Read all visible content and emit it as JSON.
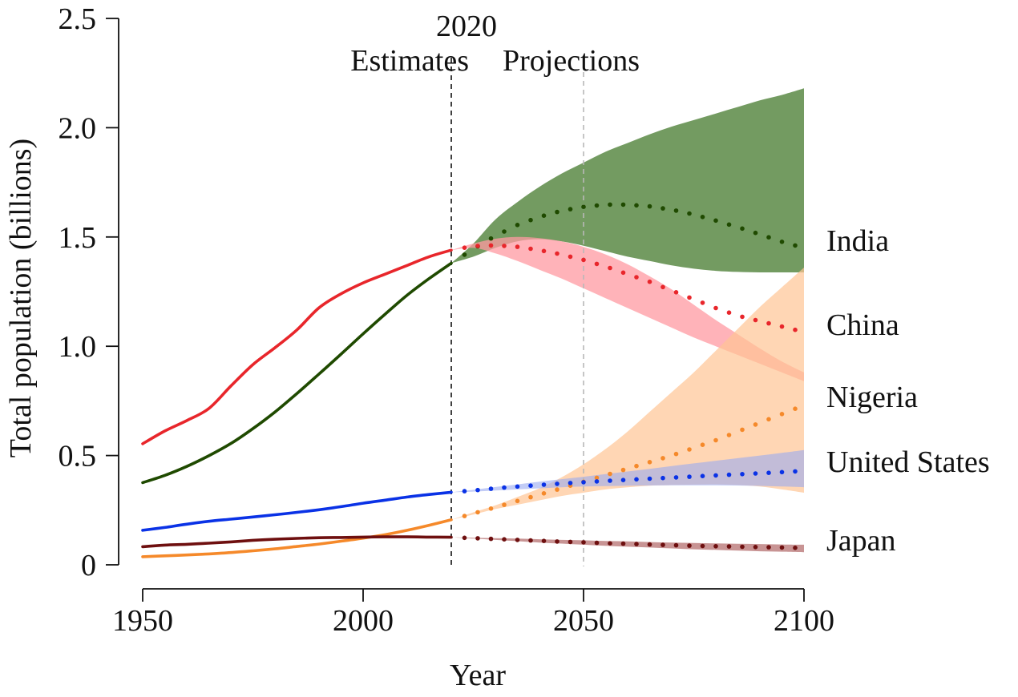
{
  "chart_data": {
    "type": "line",
    "title": "",
    "xlabel": "Year",
    "ylabel": "Total population (billions)",
    "xlim": [
      1950,
      2100
    ],
    "ylim": [
      0,
      2.5
    ],
    "x_ticks": [
      1950,
      2000,
      2050,
      2100
    ],
    "y_ticks": [
      "0",
      "0.5",
      "1.0",
      "1.5",
      "2.0",
      "2.5"
    ],
    "y_tick_values": [
      0,
      0.5,
      1.0,
      1.5,
      2.0,
      2.5
    ],
    "grid": false,
    "legend": "direct labels at right",
    "annotations": {
      "split_year": 2020,
      "split_label": "2020",
      "left_label": "Estimates",
      "right_label": "Projections",
      "reference_year": 2050
    },
    "series": [
      {
        "name": "India",
        "color": "#1f4a00",
        "band_color": "#5b8a45",
        "estimates": {
          "x": [
            1950,
            1955,
            1960,
            1965,
            1970,
            1975,
            1980,
            1985,
            1990,
            1995,
            2000,
            2005,
            2010,
            2015,
            2020
          ],
          "y": [
            0.376,
            0.409,
            0.45,
            0.499,
            0.555,
            0.623,
            0.699,
            0.784,
            0.873,
            0.964,
            1.057,
            1.147,
            1.234,
            1.31,
            1.38
          ]
        },
        "projections": {
          "x": [
            2020,
            2025,
            2030,
            2035,
            2040,
            2045,
            2050,
            2055,
            2060,
            2065,
            2070,
            2075,
            2080,
            2085,
            2090,
            2095,
            2100
          ],
          "median": [
            1.38,
            1.445,
            1.505,
            1.555,
            1.592,
            1.62,
            1.638,
            1.648,
            1.648,
            1.64,
            1.625,
            1.603,
            1.575,
            1.545,
            1.512,
            1.478,
            1.45
          ],
          "lower": [
            1.38,
            1.41,
            1.45,
            1.48,
            1.49,
            1.48,
            1.46,
            1.435,
            1.41,
            1.39,
            1.37,
            1.355,
            1.345,
            1.34,
            1.338,
            1.338,
            1.338
          ],
          "upper": [
            1.38,
            1.47,
            1.58,
            1.66,
            1.73,
            1.79,
            1.84,
            1.89,
            1.93,
            1.97,
            2.005,
            2.035,
            2.065,
            2.095,
            2.125,
            2.15,
            2.18
          ]
        }
      },
      {
        "name": "China",
        "color": "#e8262b",
        "band_color": "#ff99a2",
        "estimates": {
          "x": [
            1950,
            1955,
            1960,
            1965,
            1970,
            1975,
            1980,
            1985,
            1990,
            1995,
            2000,
            2005,
            2010,
            2015,
            2020
          ],
          "y": [
            0.554,
            0.612,
            0.66,
            0.715,
            0.818,
            0.916,
            0.993,
            1.075,
            1.176,
            1.24,
            1.29,
            1.33,
            1.37,
            1.41,
            1.44
          ]
        },
        "projections": {
          "x": [
            2020,
            2025,
            2030,
            2035,
            2040,
            2045,
            2050,
            2055,
            2060,
            2065,
            2070,
            2075,
            2080,
            2085,
            2090,
            2095,
            2100
          ],
          "median": [
            1.44,
            1.458,
            1.462,
            1.455,
            1.44,
            1.42,
            1.395,
            1.365,
            1.33,
            1.295,
            1.255,
            1.215,
            1.175,
            1.14,
            1.115,
            1.09,
            1.065
          ],
          "lower": [
            1.44,
            1.45,
            1.425,
            1.39,
            1.35,
            1.31,
            1.265,
            1.22,
            1.175,
            1.13,
            1.085,
            1.04,
            1.0,
            0.96,
            0.92,
            0.88,
            0.84
          ],
          "upper": [
            1.44,
            1.47,
            1.492,
            1.5,
            1.495,
            1.48,
            1.455,
            1.42,
            1.375,
            1.32,
            1.26,
            1.19,
            1.12,
            1.055,
            0.99,
            0.93,
            0.88
          ]
        }
      },
      {
        "name": "Nigeria",
        "color": "#f5892a",
        "band_color": "#ffc594",
        "estimates": {
          "x": [
            1950,
            1955,
            1960,
            1965,
            1970,
            1975,
            1980,
            1985,
            1990,
            1995,
            2000,
            2005,
            2010,
            2015,
            2020
          ],
          "y": [
            0.037,
            0.041,
            0.045,
            0.05,
            0.056,
            0.064,
            0.073,
            0.084,
            0.095,
            0.108,
            0.122,
            0.138,
            0.158,
            0.181,
            0.206
          ]
        },
        "projections": {
          "x": [
            2020,
            2025,
            2030,
            2035,
            2040,
            2045,
            2050,
            2055,
            2060,
            2065,
            2070,
            2075,
            2080,
            2085,
            2090,
            2095,
            2100
          ],
          "median": [
            0.206,
            0.235,
            0.263,
            0.292,
            0.321,
            0.35,
            0.38,
            0.41,
            0.44,
            0.47,
            0.5,
            0.535,
            0.57,
            0.61,
            0.65,
            0.69,
            0.73
          ],
          "lower": [
            0.206,
            0.23,
            0.255,
            0.275,
            0.295,
            0.315,
            0.33,
            0.345,
            0.355,
            0.362,
            0.365,
            0.367,
            0.368,
            0.365,
            0.358,
            0.345,
            0.33
          ],
          "upper": [
            0.206,
            0.24,
            0.272,
            0.31,
            0.35,
            0.4,
            0.46,
            0.53,
            0.61,
            0.7,
            0.79,
            0.88,
            0.98,
            1.08,
            1.18,
            1.27,
            1.36
          ]
        }
      },
      {
        "name": "United States",
        "color": "#0a32e6",
        "band_color": "#9aaaf0",
        "estimates": {
          "x": [
            1950,
            1955,
            1960,
            1965,
            1970,
            1975,
            1980,
            1985,
            1990,
            1995,
            2000,
            2005,
            2010,
            2015,
            2020
          ],
          "y": [
            0.158,
            0.171,
            0.186,
            0.199,
            0.209,
            0.219,
            0.229,
            0.24,
            0.252,
            0.266,
            0.282,
            0.296,
            0.31,
            0.322,
            0.332
          ]
        },
        "projections": {
          "x": [
            2020,
            2025,
            2030,
            2035,
            2040,
            2045,
            2050,
            2055,
            2060,
            2065,
            2070,
            2075,
            2080,
            2085,
            2090,
            2095,
            2100
          ],
          "median": [
            0.332,
            0.34,
            0.35,
            0.358,
            0.365,
            0.372,
            0.378,
            0.384,
            0.389,
            0.394,
            0.399,
            0.404,
            0.409,
            0.414,
            0.419,
            0.424,
            0.43
          ],
          "lower": [
            0.332,
            0.335,
            0.34,
            0.345,
            0.35,
            0.355,
            0.358,
            0.36,
            0.362,
            0.363,
            0.364,
            0.364,
            0.364,
            0.363,
            0.361,
            0.358,
            0.355
          ],
          "upper": [
            0.332,
            0.343,
            0.356,
            0.368,
            0.38,
            0.392,
            0.403,
            0.415,
            0.427,
            0.439,
            0.452,
            0.464,
            0.476,
            0.488,
            0.5,
            0.512,
            0.525
          ]
        }
      },
      {
        "name": "Japan",
        "color": "#6e0f0f",
        "band_color": "#b57070",
        "estimates": {
          "x": [
            1950,
            1955,
            1960,
            1965,
            1970,
            1975,
            1980,
            1985,
            1990,
            1995,
            2000,
            2005,
            2010,
            2015,
            2020
          ],
          "y": [
            0.083,
            0.09,
            0.094,
            0.099,
            0.105,
            0.112,
            0.117,
            0.121,
            0.124,
            0.125,
            0.127,
            0.128,
            0.128,
            0.127,
            0.126
          ]
        },
        "projections": {
          "x": [
            2020,
            2025,
            2030,
            2035,
            2040,
            2045,
            2050,
            2055,
            2060,
            2065,
            2070,
            2075,
            2080,
            2085,
            2090,
            2095,
            2100
          ],
          "median": [
            0.126,
            0.122,
            0.118,
            0.114,
            0.11,
            0.106,
            0.103,
            0.099,
            0.096,
            0.093,
            0.09,
            0.087,
            0.085,
            0.083,
            0.081,
            0.079,
            0.077
          ],
          "lower": [
            0.126,
            0.12,
            0.114,
            0.108,
            0.102,
            0.097,
            0.092,
            0.087,
            0.083,
            0.079,
            0.075,
            0.071,
            0.068,
            0.065,
            0.062,
            0.06,
            0.058
          ],
          "upper": [
            0.126,
            0.124,
            0.122,
            0.12,
            0.117,
            0.114,
            0.112,
            0.109,
            0.107,
            0.104,
            0.102,
            0.1,
            0.098,
            0.096,
            0.095,
            0.093,
            0.092
          ]
        }
      }
    ]
  }
}
